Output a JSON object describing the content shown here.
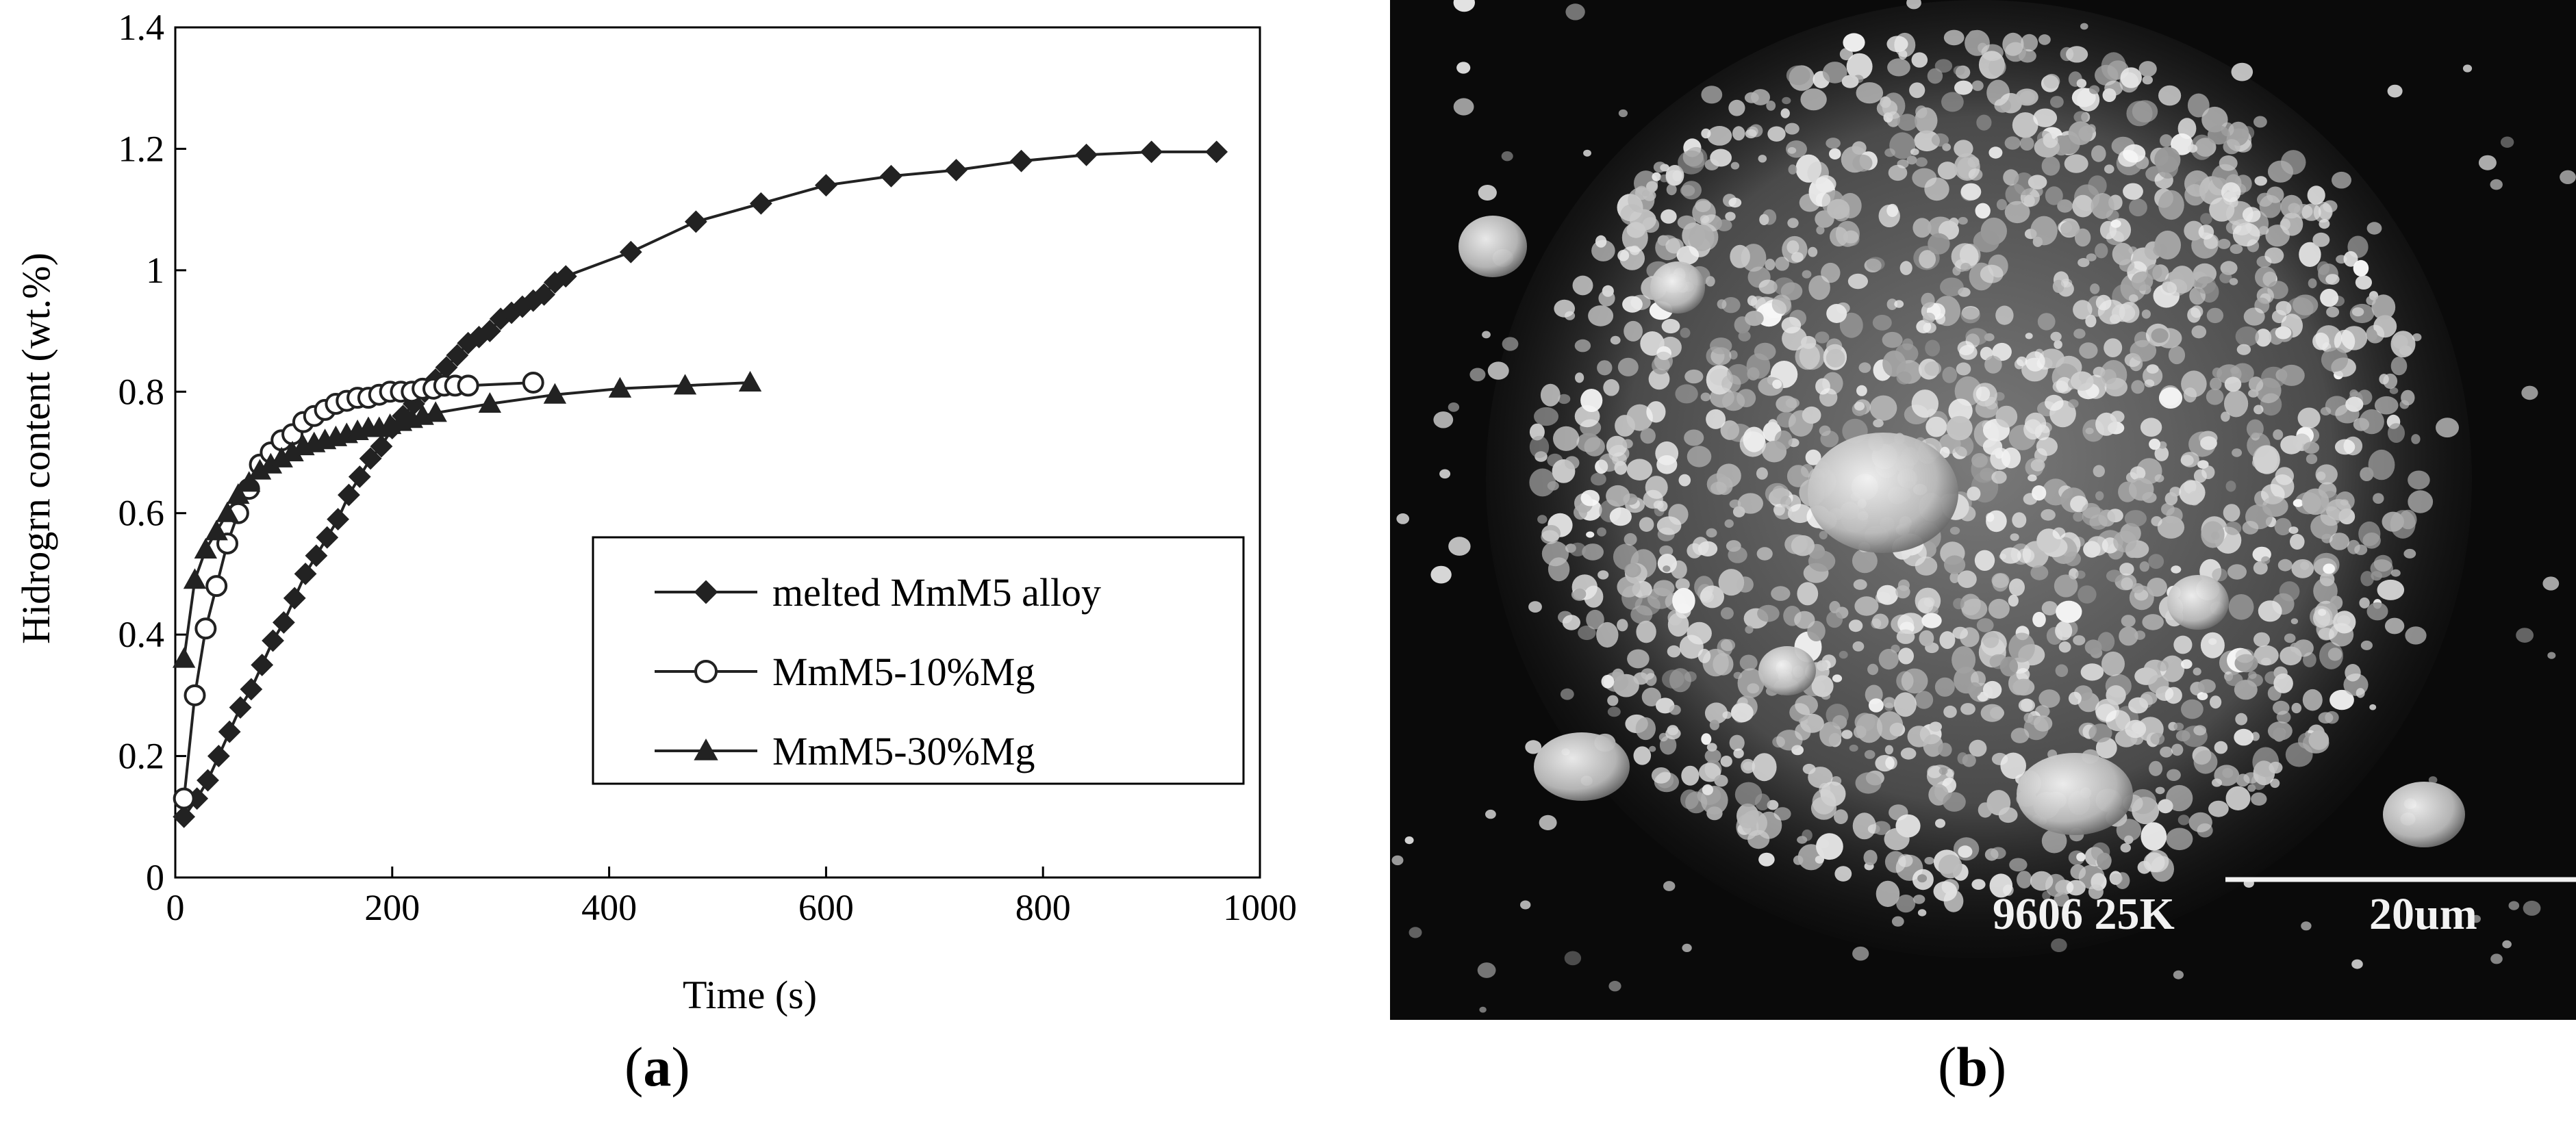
{
  "panels": [
    {
      "label_open": "(",
      "label_letter": "a",
      "label_close": ")"
    },
    {
      "label_open": "(",
      "label_letter": "b",
      "label_close": ")"
    }
  ],
  "micrograph": {
    "annotation": "9606 25K",
    "scale_bar": "20um"
  },
  "chart_data": {
    "type": "line",
    "xlabel": "Time (s)",
    "ylabel": "Hidrogrn content (wt.%)",
    "xlim": [
      0,
      1000
    ],
    "ylim": [
      0,
      1.4
    ],
    "xticks": [
      0,
      200,
      400,
      600,
      800,
      1000
    ],
    "yticks": [
      0,
      0.2,
      0.4,
      0.6,
      0.8,
      1,
      1.2,
      1.4
    ],
    "ytick_labels": [
      "0",
      "0.2",
      "0.4",
      "0.6",
      "0.8",
      "1",
      "1.2",
      "1.4"
    ],
    "grid": false,
    "legend": {
      "placement": "middle-right"
    },
    "series": [
      {
        "name": "melted MmM5 alloy",
        "marker": "diamond",
        "color": "#222222",
        "x": [
          8,
          20,
          30,
          40,
          50,
          60,
          70,
          80,
          90,
          100,
          110,
          120,
          130,
          140,
          150,
          160,
          170,
          180,
          190,
          200,
          210,
          220,
          230,
          240,
          250,
          260,
          270,
          280,
          290,
          300,
          310,
          320,
          330,
          340,
          350,
          360,
          420,
          480,
          540,
          600,
          660,
          720,
          780,
          840,
          900,
          960
        ],
        "y": [
          0.1,
          0.13,
          0.16,
          0.2,
          0.24,
          0.28,
          0.31,
          0.35,
          0.39,
          0.42,
          0.46,
          0.5,
          0.53,
          0.56,
          0.59,
          0.63,
          0.66,
          0.69,
          0.71,
          0.74,
          0.76,
          0.78,
          0.8,
          0.82,
          0.84,
          0.86,
          0.88,
          0.89,
          0.9,
          0.92,
          0.93,
          0.94,
          0.95,
          0.96,
          0.98,
          0.99,
          1.03,
          1.08,
          1.11,
          1.14,
          1.155,
          1.165,
          1.18,
          1.19,
          1.195,
          1.195
        ]
      },
      {
        "name": "MmM5-10%Mg",
        "marker": "circle",
        "color": "#222222",
        "x": [
          8,
          18,
          28,
          38,
          48,
          58,
          68,
          78,
          88,
          98,
          108,
          118,
          128,
          138,
          148,
          158,
          168,
          178,
          188,
          198,
          208,
          218,
          228,
          238,
          248,
          258,
          270,
          330
        ],
        "y": [
          0.13,
          0.3,
          0.41,
          0.48,
          0.55,
          0.6,
          0.64,
          0.68,
          0.7,
          0.72,
          0.73,
          0.75,
          0.76,
          0.77,
          0.78,
          0.785,
          0.79,
          0.79,
          0.795,
          0.8,
          0.8,
          0.8,
          0.805,
          0.805,
          0.81,
          0.81,
          0.81,
          0.815
        ]
      },
      {
        "name": "MmM5-30%Mg",
        "marker": "triangle",
        "color": "#222222",
        "x": [
          8,
          18,
          28,
          38,
          48,
          58,
          68,
          78,
          88,
          98,
          108,
          118,
          128,
          138,
          148,
          158,
          168,
          178,
          188,
          198,
          208,
          218,
          228,
          240,
          290,
          350,
          410,
          470,
          530
        ],
        "y": [
          0.36,
          0.49,
          0.54,
          0.57,
          0.6,
          0.63,
          0.65,
          0.67,
          0.68,
          0.69,
          0.7,
          0.71,
          0.715,
          0.72,
          0.725,
          0.73,
          0.735,
          0.74,
          0.74,
          0.745,
          0.75,
          0.755,
          0.76,
          0.765,
          0.78,
          0.795,
          0.805,
          0.81,
          0.815
        ]
      }
    ]
  }
}
